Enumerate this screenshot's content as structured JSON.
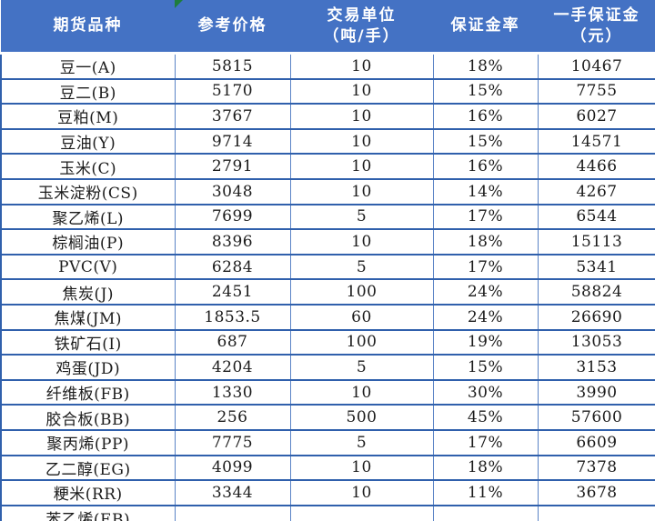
{
  "table": {
    "title_semantic": "futures-margin-table",
    "indicator_col": 1,
    "headers": [
      {
        "line1": "期货品种",
        "line2": ""
      },
      {
        "line1": "参考价格",
        "line2": ""
      },
      {
        "line1": "交易单位",
        "line2": "（吨/手）"
      },
      {
        "line1": "保证金率",
        "line2": ""
      },
      {
        "line1": "一手保证金",
        "line2": "（元）"
      }
    ],
    "rows": [
      {
        "name": "豆一(A)",
        "price": "5815",
        "unit": "10",
        "margin_rate": "18%",
        "margin": "10467"
      },
      {
        "name": "豆二(B)",
        "price": "5170",
        "unit": "10",
        "margin_rate": "15%",
        "margin": "7755"
      },
      {
        "name": "豆粕(M)",
        "price": "3767",
        "unit": "10",
        "margin_rate": "16%",
        "margin": "6027"
      },
      {
        "name": "豆油(Y)",
        "price": "9714",
        "unit": "10",
        "margin_rate": "15%",
        "margin": "14571"
      },
      {
        "name": "玉米(C)",
        "price": "2791",
        "unit": "10",
        "margin_rate": "16%",
        "margin": "4466"
      },
      {
        "name": "玉米淀粉(CS)",
        "price": "3048",
        "unit": "10",
        "margin_rate": "14%",
        "margin": "4267"
      },
      {
        "name": "聚乙烯(L)",
        "price": "7699",
        "unit": "5",
        "margin_rate": "17%",
        "margin": "6544"
      },
      {
        "name": "棕榈油(P)",
        "price": "8396",
        "unit": "10",
        "margin_rate": "18%",
        "margin": "15113"
      },
      {
        "name": "PVC(V)",
        "price": "6284",
        "unit": "5",
        "margin_rate": "17%",
        "margin": "5341"
      },
      {
        "name": "焦炭(J)",
        "price": "2451",
        "unit": "100",
        "margin_rate": "24%",
        "margin": "58824"
      },
      {
        "name": "焦煤(JM)",
        "price": "1853.5",
        "unit": "60",
        "margin_rate": "24%",
        "margin": "26690"
      },
      {
        "name": "铁矿石(I)",
        "price": "687",
        "unit": "100",
        "margin_rate": "19%",
        "margin": "13053"
      },
      {
        "name": "鸡蛋(JD)",
        "price": "4204",
        "unit": "5",
        "margin_rate": "15%",
        "margin": "3153"
      },
      {
        "name": "纤维板(FB)",
        "price": "1330",
        "unit": "10",
        "margin_rate": "30%",
        "margin": "3990"
      },
      {
        "name": "胶合板(BB)",
        "price": "256",
        "unit": "500",
        "margin_rate": "45%",
        "margin": "57600"
      },
      {
        "name": "聚丙烯(PP)",
        "price": "7775",
        "unit": "5",
        "margin_rate": "17%",
        "margin": "6609"
      },
      {
        "name": "乙二醇(EG)",
        "price": "4099",
        "unit": "10",
        "margin_rate": "18%",
        "margin": "7378"
      },
      {
        "name": "粳米(RR)",
        "price": "3344",
        "unit": "10",
        "margin_rate": "11%",
        "margin": "3678"
      },
      {
        "name": "苯乙烯(EB)",
        "price": "",
        "unit": "",
        "margin_rate": "",
        "margin": ""
      }
    ]
  },
  "colors": {
    "header_bg": "#4472C4",
    "header_text": "#FFFFFF",
    "border_strong": "#3060AC",
    "border_light": "#5B84C6",
    "body_text": "#1B1B1B",
    "indicator_green": "#1E7D3C"
  },
  "icons": {
    "cell_error_indicator": "green-corner-triangle"
  }
}
